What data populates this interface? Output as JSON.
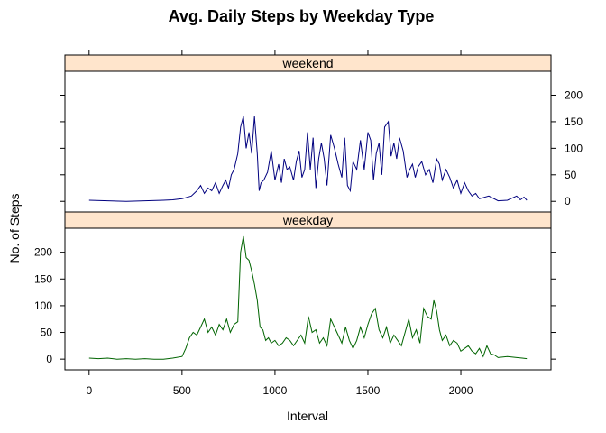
{
  "chart_data": {
    "type": "line",
    "title": "Avg. Daily Steps by Weekday Type",
    "xlabel": "Interval",
    "ylabel": "No. of Steps",
    "xlim": [
      -130,
      2485
    ],
    "ylim": [
      -20,
      245
    ],
    "x_ticks": [
      0,
      500,
      1000,
      1500,
      2000
    ],
    "x_tick_labels": [
      "0",
      "500",
      "1000",
      "1500",
      "2000"
    ],
    "y_ticks": [
      0,
      50,
      100,
      150,
      200
    ],
    "y_tick_labels": [
      "0",
      "50",
      "100",
      "150",
      "200"
    ],
    "grid": false,
    "legend": "none",
    "panels": [
      {
        "strip_label": "weekend",
        "color": "#00007f",
        "strip_color": "#ffe5cc",
        "y_axis_side": "right",
        "x": [
          0,
          100,
          200,
          300,
          400,
          450,
          500,
          550,
          580,
          600,
          620,
          640,
          660,
          680,
          700,
          720,
          735,
          750,
          765,
          780,
          800,
          815,
          830,
          845,
          860,
          875,
          890,
          905,
          915,
          925,
          940,
          960,
          980,
          1000,
          1020,
          1035,
          1050,
          1065,
          1080,
          1100,
          1115,
          1130,
          1145,
          1160,
          1175,
          1190,
          1205,
          1220,
          1235,
          1250,
          1265,
          1280,
          1300,
          1320,
          1340,
          1360,
          1375,
          1390,
          1405,
          1420,
          1440,
          1460,
          1480,
          1500,
          1515,
          1530,
          1545,
          1560,
          1575,
          1590,
          1610,
          1625,
          1640,
          1655,
          1670,
          1690,
          1710,
          1725,
          1740,
          1755,
          1770,
          1790,
          1810,
          1830,
          1850,
          1870,
          1885,
          1900,
          1920,
          1940,
          1960,
          1980,
          2000,
          2020,
          2040,
          2060,
          2080,
          2100,
          2150,
          2200,
          2250,
          2300,
          2320,
          2340,
          2355
        ],
        "y": [
          2,
          1,
          0,
          1,
          2,
          3,
          5,
          10,
          20,
          30,
          15,
          25,
          20,
          35,
          15,
          30,
          40,
          25,
          50,
          60,
          90,
          140,
          160,
          100,
          130,
          90,
          160,
          90,
          20,
          35,
          40,
          55,
          95,
          40,
          70,
          35,
          80,
          60,
          65,
          40,
          75,
          95,
          45,
          60,
          130,
          60,
          120,
          25,
          80,
          110,
          80,
          30,
          125,
          100,
          70,
          45,
          120,
          30,
          20,
          75,
          60,
          115,
          60,
          130,
          115,
          40,
          90,
          110,
          50,
          140,
          150,
          85,
          110,
          80,
          120,
          95,
          45,
          60,
          70,
          45,
          65,
          75,
          50,
          60,
          35,
          80,
          70,
          40,
          60,
          45,
          25,
          40,
          15,
          35,
          20,
          10,
          15,
          5,
          10,
          1,
          2,
          10,
          3,
          8,
          2
        ]
      },
      {
        "strip_label": "weekday",
        "color": "#006400",
        "strip_color": "#ffe5cc",
        "y_axis_side": "left",
        "x": [
          0,
          50,
          100,
          150,
          200,
          250,
          300,
          350,
          400,
          450,
          500,
          520,
          540,
          560,
          580,
          600,
          620,
          640,
          660,
          680,
          700,
          720,
          740,
          760,
          780,
          800,
          815,
          830,
          845,
          860,
          875,
          890,
          905,
          920,
          935,
          950,
          965,
          980,
          1000,
          1020,
          1040,
          1060,
          1080,
          1100,
          1120,
          1140,
          1160,
          1180,
          1200,
          1220,
          1240,
          1260,
          1280,
          1300,
          1320,
          1340,
          1360,
          1380,
          1400,
          1420,
          1440,
          1460,
          1480,
          1500,
          1520,
          1540,
          1560,
          1580,
          1600,
          1620,
          1640,
          1660,
          1680,
          1700,
          1720,
          1740,
          1760,
          1780,
          1800,
          1820,
          1840,
          1855,
          1870,
          1885,
          1900,
          1920,
          1940,
          1960,
          1980,
          2000,
          2020,
          2040,
          2060,
          2080,
          2100,
          2120,
          2140,
          2160,
          2180,
          2200,
          2250,
          2300,
          2330,
          2355
        ],
        "y": [
          2,
          1,
          2,
          0,
          1,
          0,
          1,
          0,
          0,
          2,
          5,
          20,
          40,
          50,
          45,
          60,
          75,
          50,
          60,
          45,
          65,
          55,
          75,
          50,
          65,
          70,
          200,
          230,
          190,
          185,
          165,
          140,
          110,
          60,
          55,
          35,
          40,
          30,
          35,
          25,
          30,
          40,
          35,
          25,
          35,
          45,
          30,
          80,
          50,
          55,
          30,
          40,
          25,
          75,
          60,
          45,
          30,
          60,
          35,
          20,
          35,
          60,
          40,
          65,
          85,
          95,
          55,
          40,
          60,
          30,
          45,
          35,
          25,
          50,
          75,
          40,
          55,
          30,
          95,
          80,
          75,
          110,
          90,
          55,
          35,
          45,
          25,
          35,
          30,
          15,
          20,
          25,
          15,
          10,
          20,
          5,
          25,
          10,
          8,
          3,
          5,
          3,
          2,
          1
        ]
      }
    ]
  }
}
